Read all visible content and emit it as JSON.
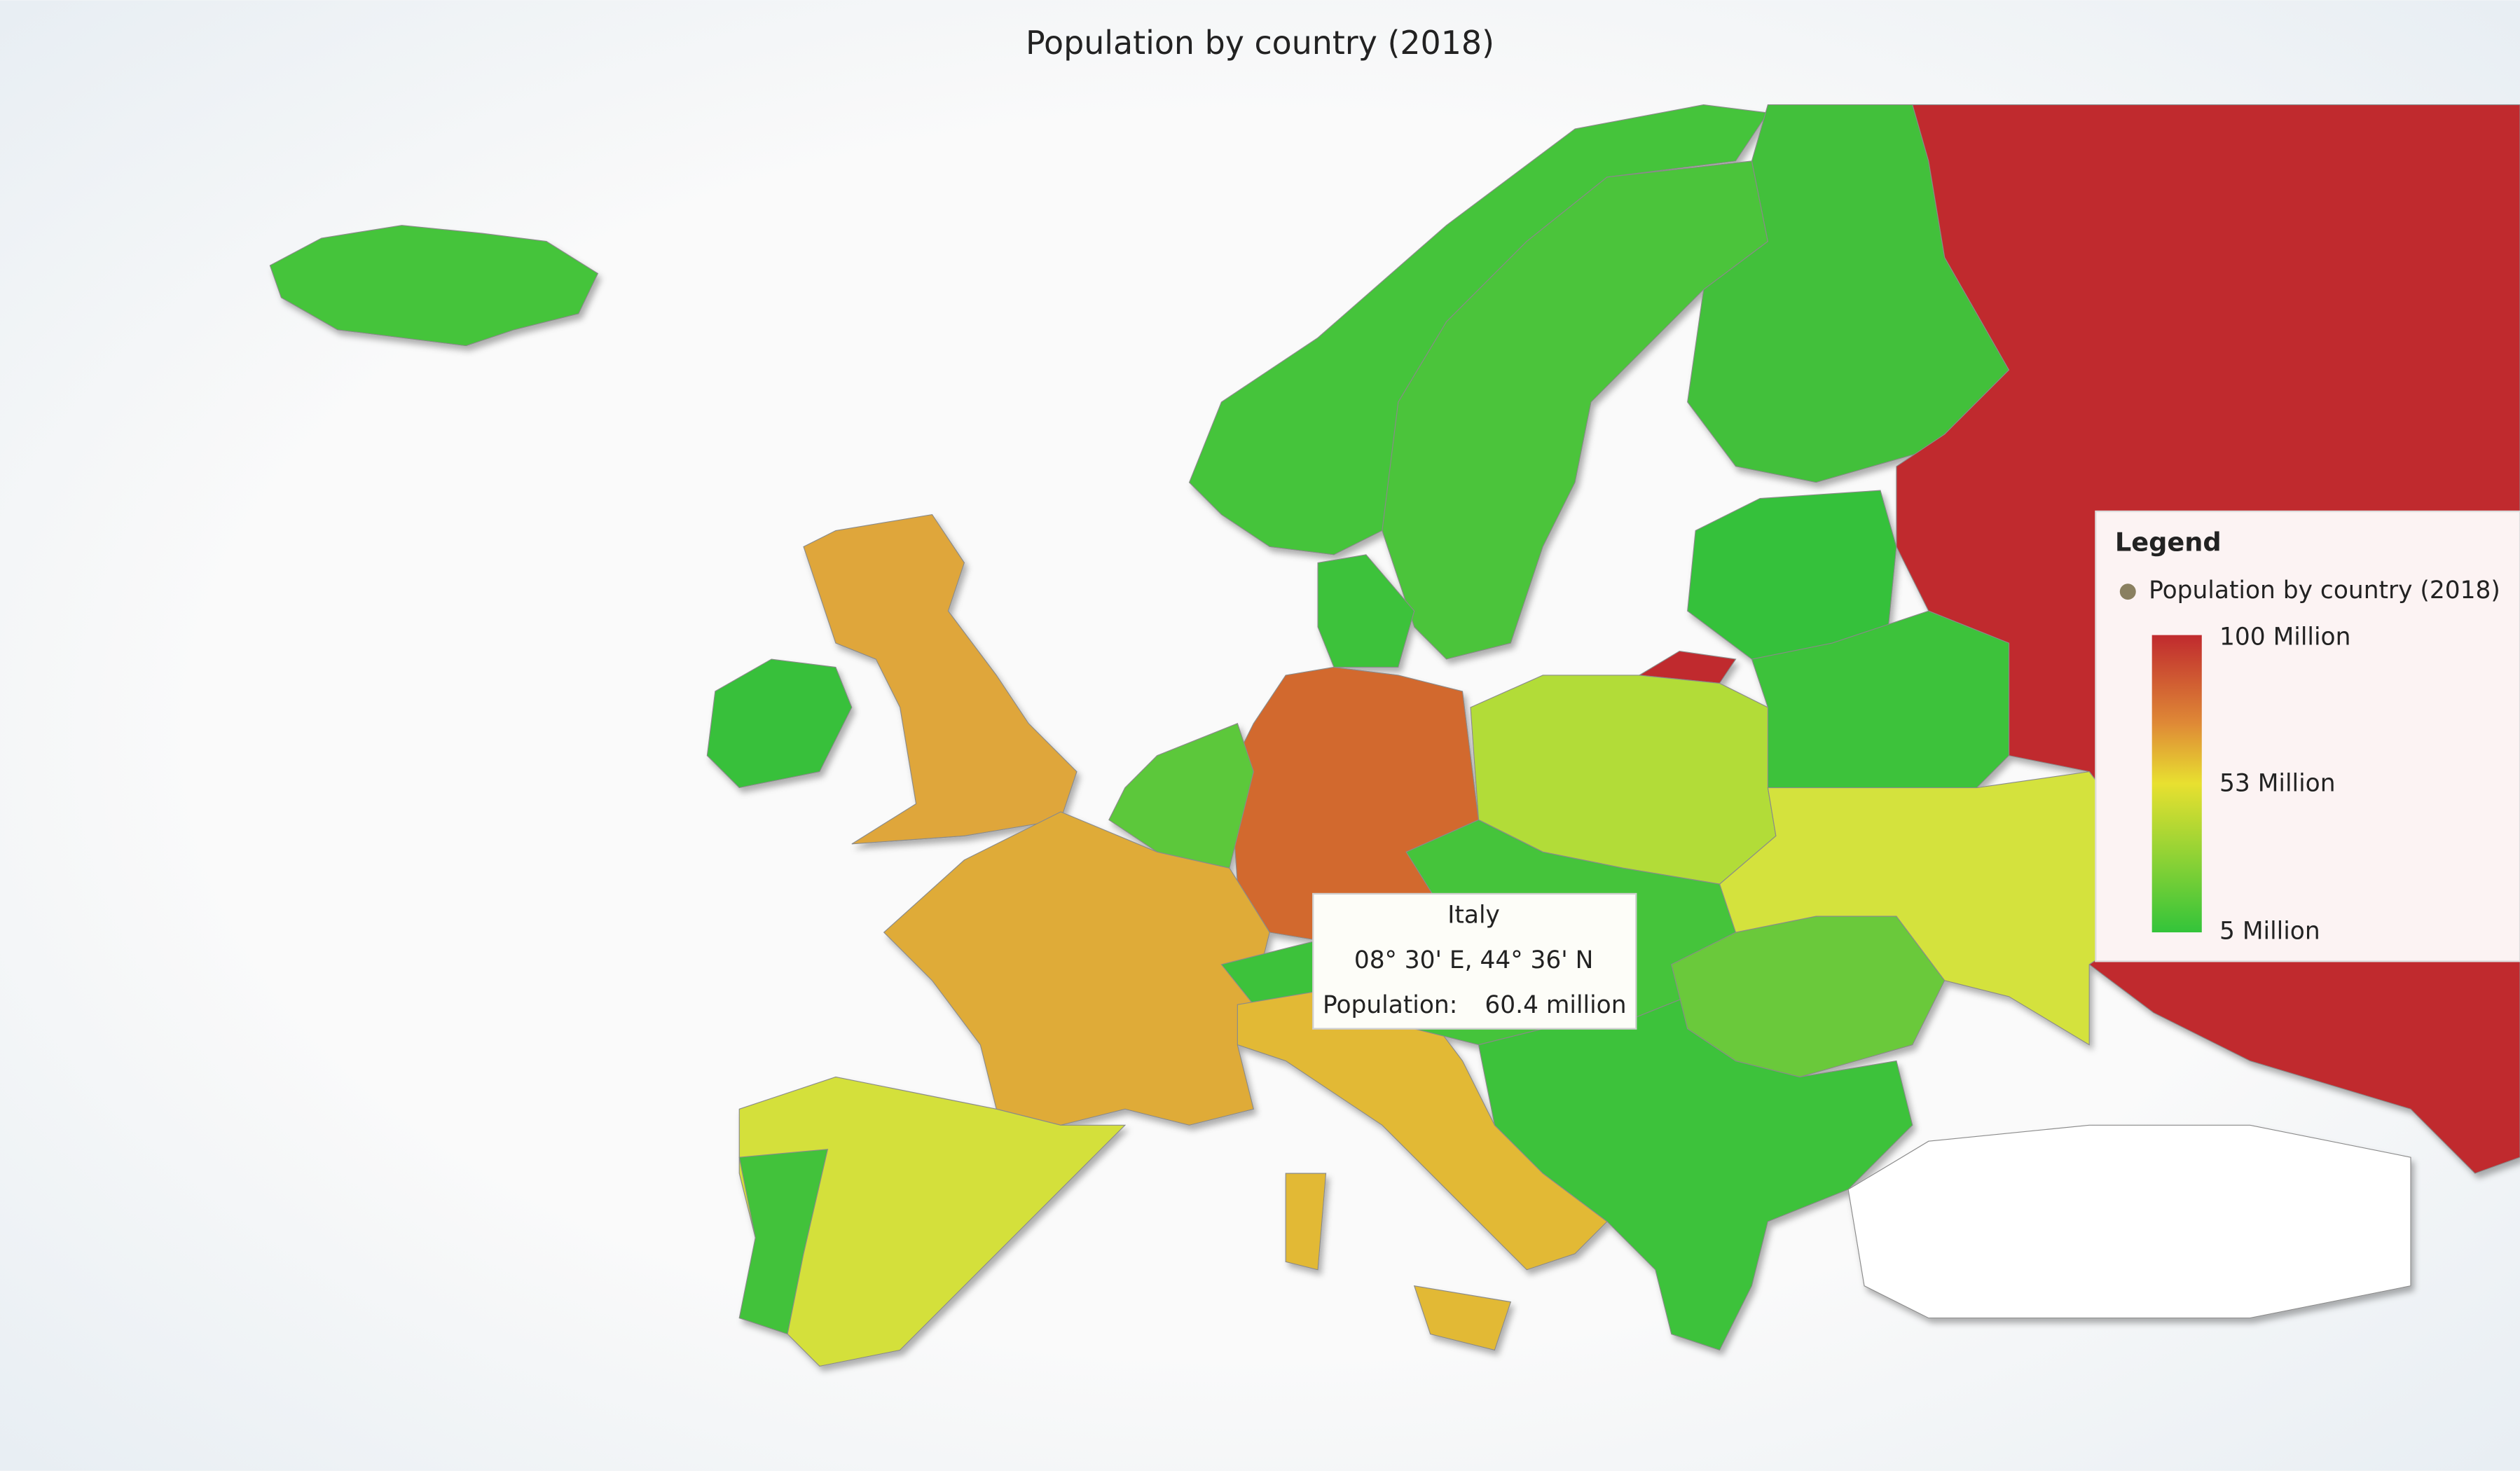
{
  "header": {
    "title": "Population by country (2018)"
  },
  "tooltip": {
    "name": "Italy",
    "coordinates": "08° 30' E, 44° 36' N",
    "population_label": "Population:",
    "population_value": "60.4 million"
  },
  "legend": {
    "title": "Legend",
    "series_name": "Population by country (2018)",
    "scale": [
      "100 Million",
      "53 Million",
      "5 Million"
    ]
  }
}
